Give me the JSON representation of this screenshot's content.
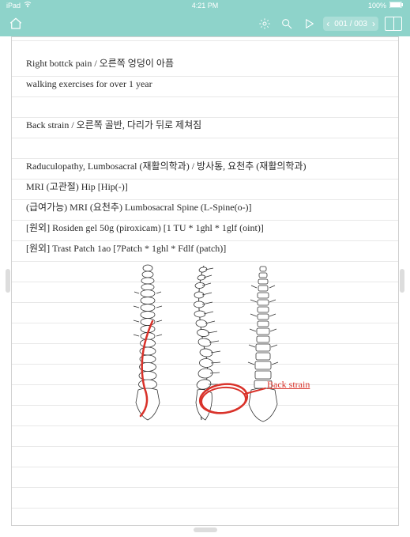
{
  "statusbar": {
    "carrier": "iPad",
    "wifi": "◉",
    "time": "4:21 PM",
    "battery_pct": "100%",
    "battery_icon": "▮"
  },
  "toolbar": {
    "page_indicator": "001 / 003"
  },
  "notes": {
    "lines": [
      "Right bottck pain / 오른쪽 엉덩이 아픔",
      "walking exercises for over 1 year",
      "",
      "Back strain / 오른쪽 골반, 다리가 뒤로 제쳐짐",
      "",
      "Raduculopathy, Lumbosacral (재활의학과) / 방사통, 요천추 (재활의학과)",
      "MRI (고관절) Hip [Hip(-)]",
      "(급여가능) MRI (요천추) Lumbosacral Spine (L-Spine(o-)]",
      "[원외] Rosiden gel 50g (piroxicam) [1 TU * 1ghl * 1glf (oint)]",
      "[원외] Trast Patch 1ao [7Patch * 1ghl * Fdlf (patch)]"
    ]
  },
  "annotation": {
    "label": "Back strain"
  },
  "colors": {
    "accent": "#8ed3ca",
    "ink": "#2a2a2a",
    "red": "#d9322a",
    "rule": "#e8e8e8"
  }
}
